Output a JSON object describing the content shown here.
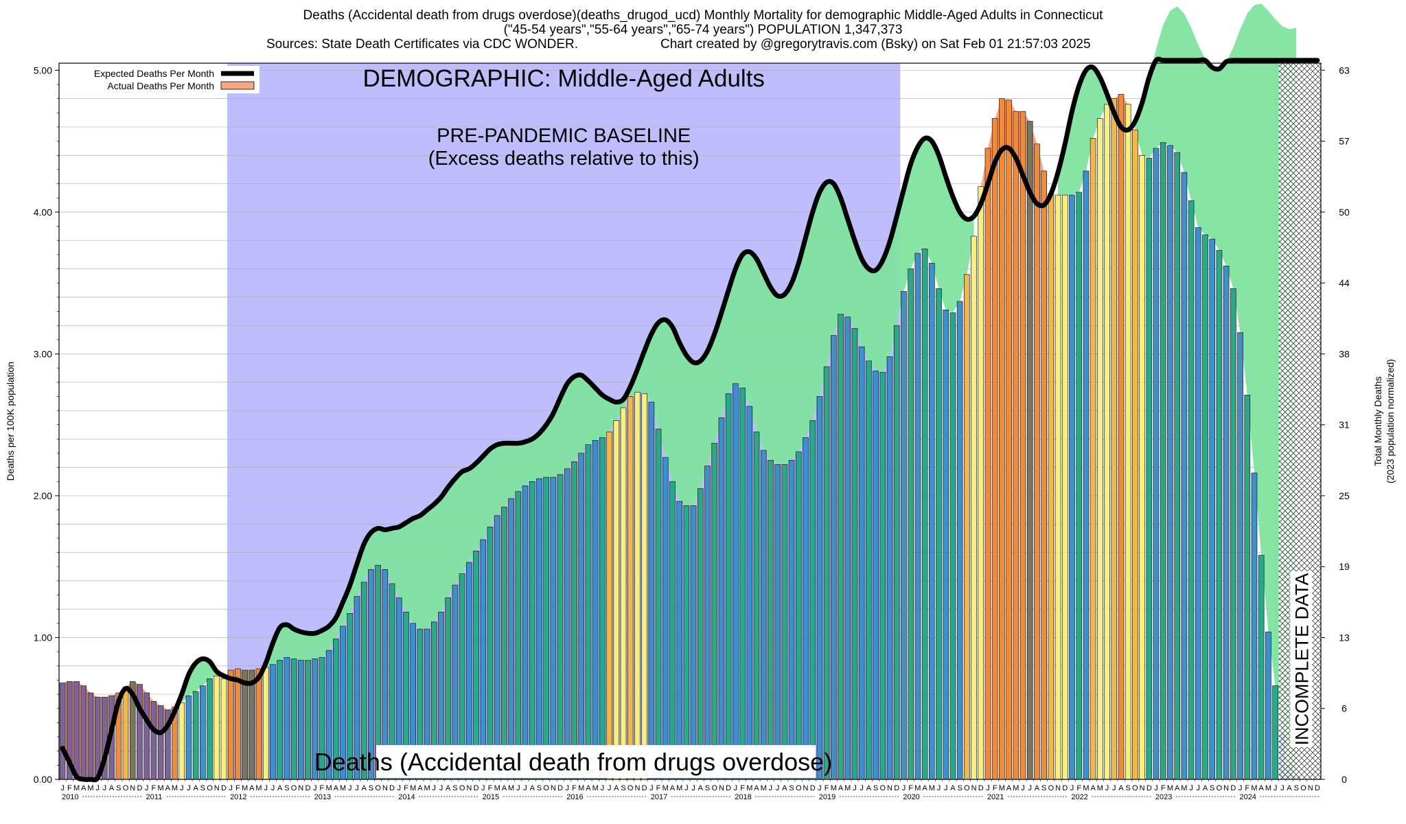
{
  "header": {
    "line1": "Deaths (Accidental death from drugs overdose)(deaths_drugod_ucd) Monthly Mortality for demographic Middle-Aged Adults in Connecticut",
    "line2": "(\"45-54 years\",\"55-64 years\",\"65-74 years\") POPULATION 1,347,373",
    "sources": "Sources: State Death Certificates via CDC WONDER.",
    "credit": "Chart created by @gregorytravis.com (Bsky) on Sat Feb 01 21:57:03 2025"
  },
  "colors": {
    "baseline_region": "#bfbdfb",
    "excess_above_expected": "#f4a582",
    "below_expected": "#7fe3a0",
    "expected_line": "#000000",
    "bar_palette": [
      "#3f8fcb",
      "#2aa889",
      "#f6ef7e",
      "#f0b84a",
      "#f28a3c",
      "#7d6396",
      "#7a765e"
    ],
    "incomplete_hatch": "#222222"
  },
  "chart_data": {
    "type": "bar",
    "frequency": "monthly",
    "start": "2010-01",
    "end": "2024-12",
    "ylabel": "Deaths per 100K population",
    "y2label": "Total Monthly Deaths",
    "y2label_sub": "(2023 population normalized)",
    "ylim": [
      0,
      5.05
    ],
    "yticks": [
      "0.00",
      "1.00",
      "2.00",
      "3.00",
      "4.00",
      "5.00"
    ],
    "y2ticks": [
      "0",
      "6",
      "13",
      "19",
      "25",
      "31",
      "38",
      "44",
      "50",
      "57",
      "63"
    ],
    "y2ticks_values": [
      0,
      0.5,
      1,
      1.5,
      2,
      2.5,
      3,
      3.5,
      4,
      4.5,
      5
    ],
    "month_letters": [
      "J",
      "F",
      "M",
      "A",
      "M",
      "J",
      "J",
      "A",
      "S",
      "O",
      "N",
      "D"
    ],
    "years": [
      "2010",
      "2011",
      "2012",
      "2013",
      "2014",
      "2015",
      "2016",
      "2017",
      "2018",
      "2019",
      "2020",
      "2021",
      "2022",
      "2023",
      "2024"
    ],
    "legend": [
      {
        "label": "Expected Deaths Per Month",
        "style": "line"
      },
      {
        "label": "Actual Deaths Per Month",
        "style": "swatch"
      }
    ],
    "legend_position": "top-left",
    "annotations": {
      "demographic": "DEMOGRAPHIC: Middle-Aged Adults",
      "baseline_title": "PRE-PANDEMIC BASELINE",
      "baseline_sub": "(Excess deaths relative to this)",
      "cause": "Deaths (Accidental death from drugs overdose)",
      "incomplete": "INCOMPLETE DATA"
    },
    "baseline_period": [
      "2012-01",
      "2019-12"
    ],
    "incomplete_period": [
      "2024-07",
      "2024-12"
    ],
    "actual": [
      0.68,
      0.69,
      0.69,
      0.66,
      0.61,
      0.58,
      0.58,
      0.59,
      0.61,
      0.65,
      0.69,
      0.67,
      0.61,
      0.55,
      0.52,
      0.49,
      0.51,
      0.54,
      0.59,
      0.62,
      0.66,
      0.71,
      0.73,
      0.71,
      0.77,
      0.78,
      0.77,
      0.77,
      0.78,
      0.79,
      0.81,
      0.84,
      0.86,
      0.85,
      0.84,
      0.84,
      0.85,
      0.86,
      0.91,
      0.99,
      1.08,
      1.17,
      1.29,
      1.39,
      1.48,
      1.51,
      1.48,
      1.38,
      1.28,
      1.18,
      1.1,
      1.06,
      1.06,
      1.11,
      1.18,
      1.28,
      1.37,
      1.45,
      1.53,
      1.61,
      1.69,
      1.78,
      1.86,
      1.92,
      1.98,
      2.03,
      2.07,
      2.1,
      2.12,
      2.13,
      2.13,
      2.15,
      2.19,
      2.24,
      2.3,
      2.36,
      2.39,
      2.41,
      2.45,
      2.53,
      2.62,
      2.7,
      2.73,
      2.72,
      2.66,
      2.47,
      2.27,
      2.1,
      1.96,
      1.93,
      1.93,
      2.05,
      2.21,
      2.37,
      2.55,
      2.72,
      2.79,
      2.76,
      2.63,
      2.45,
      2.32,
      2.25,
      2.22,
      2.22,
      2.25,
      2.31,
      2.41,
      2.53,
      2.7,
      2.91,
      3.13,
      3.28,
      3.26,
      3.18,
      3.05,
      2.95,
      2.88,
      2.87,
      2.98,
      3.2,
      3.44,
      3.6,
      3.71,
      3.74,
      3.64,
      3.46,
      3.31,
      3.29,
      3.37,
      3.56,
      3.83,
      4.18,
      4.45,
      4.66,
      4.8,
      4.79,
      4.71,
      4.71,
      4.64,
      4.48,
      4.29,
      4.13,
      4.12,
      4.12,
      4.12,
      4.14,
      4.29,
      4.52,
      4.66,
      4.76,
      4.8,
      4.83,
      4.76,
      4.58,
      4.4,
      4.38,
      4.45,
      4.49,
      4.47,
      4.42,
      4.28,
      4.08,
      3.89,
      3.84,
      3.81,
      3.73,
      3.62,
      3.46,
      3.15,
      2.71,
      2.16,
      1.58,
      1.04,
      0.66,
      0.32,
      0.1,
      0.02
    ],
    "expected": [
      0.22,
      0.12,
      0.02,
      0.0,
      0.0,
      0.01,
      0.15,
      0.35,
      0.55,
      0.64,
      0.6,
      0.5,
      0.42,
      0.35,
      0.33,
      0.38,
      0.48,
      0.6,
      0.74,
      0.82,
      0.85,
      0.83,
      0.76,
      0.73,
      0.71,
      0.7,
      0.68,
      0.68,
      0.72,
      0.82,
      0.96,
      1.07,
      1.09,
      1.06,
      1.04,
      1.03,
      1.03,
      1.05,
      1.08,
      1.14,
      1.25,
      1.37,
      1.52,
      1.66,
      1.74,
      1.77,
      1.76,
      1.77,
      1.78,
      1.81,
      1.84,
      1.86,
      1.9,
      1.94,
      1.99,
      2.06,
      2.12,
      2.17,
      2.19,
      2.23,
      2.28,
      2.33,
      2.36,
      2.37,
      2.37,
      2.37,
      2.38,
      2.4,
      2.44,
      2.5,
      2.58,
      2.69,
      2.79,
      2.84,
      2.85,
      2.81,
      2.76,
      2.71,
      2.68,
      2.66,
      2.68,
      2.77,
      2.89,
      3.02,
      3.14,
      3.22,
      3.24,
      3.19,
      3.08,
      2.99,
      2.94,
      2.95,
      3.02,
      3.14,
      3.29,
      3.45,
      3.6,
      3.7,
      3.72,
      3.67,
      3.57,
      3.47,
      3.41,
      3.42,
      3.5,
      3.64,
      3.82,
      4.0,
      4.14,
      4.21,
      4.2,
      4.1,
      3.95,
      3.8,
      3.67,
      3.6,
      3.59,
      3.66,
      3.79,
      3.97,
      4.16,
      4.34,
      4.46,
      4.52,
      4.5,
      4.4,
      4.25,
      4.11,
      4.0,
      3.95,
      3.97,
      4.06,
      4.2,
      4.35,
      4.44,
      4.45,
      4.38,
      4.26,
      4.14,
      4.06,
      4.05,
      4.13,
      4.28,
      4.48,
      4.71,
      4.89,
      5.0,
      5.02,
      4.95,
      4.83,
      4.7,
      4.6,
      4.58,
      4.64,
      4.77,
      4.95,
      5.15,
      5.32,
      5.42,
      5.45,
      5.4,
      5.3,
      5.18,
      5.08,
      5.02,
      5.01,
      5.06,
      5.16,
      5.29,
      5.4,
      5.46,
      5.47,
      5.42,
      5.36,
      5.31,
      5.29,
      5.3,
      5.34,
      5.38,
      5.42
    ]
  }
}
